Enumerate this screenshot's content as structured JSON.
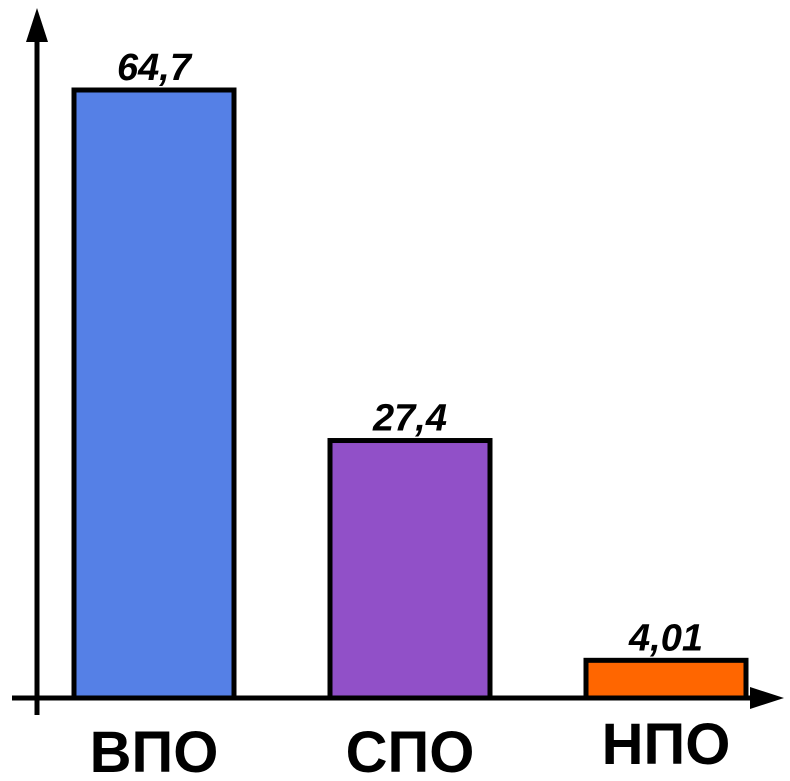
{
  "chart_data": {
    "type": "bar",
    "categories": [
      "ВПО",
      "СПО",
      "НПО"
    ],
    "values": [
      64.7,
      27.4,
      4.01
    ],
    "value_labels": [
      "64,7",
      "27,4",
      "4,01"
    ],
    "title": "",
    "xlabel": "",
    "ylabel": "",
    "ylim": [
      0,
      70
    ],
    "grid": false,
    "legend": "none",
    "colors": [
      "#5580E6",
      "#9150C8",
      "#FF6600"
    ],
    "axis_color": "#000000",
    "bar_outline_color": "#000000"
  }
}
